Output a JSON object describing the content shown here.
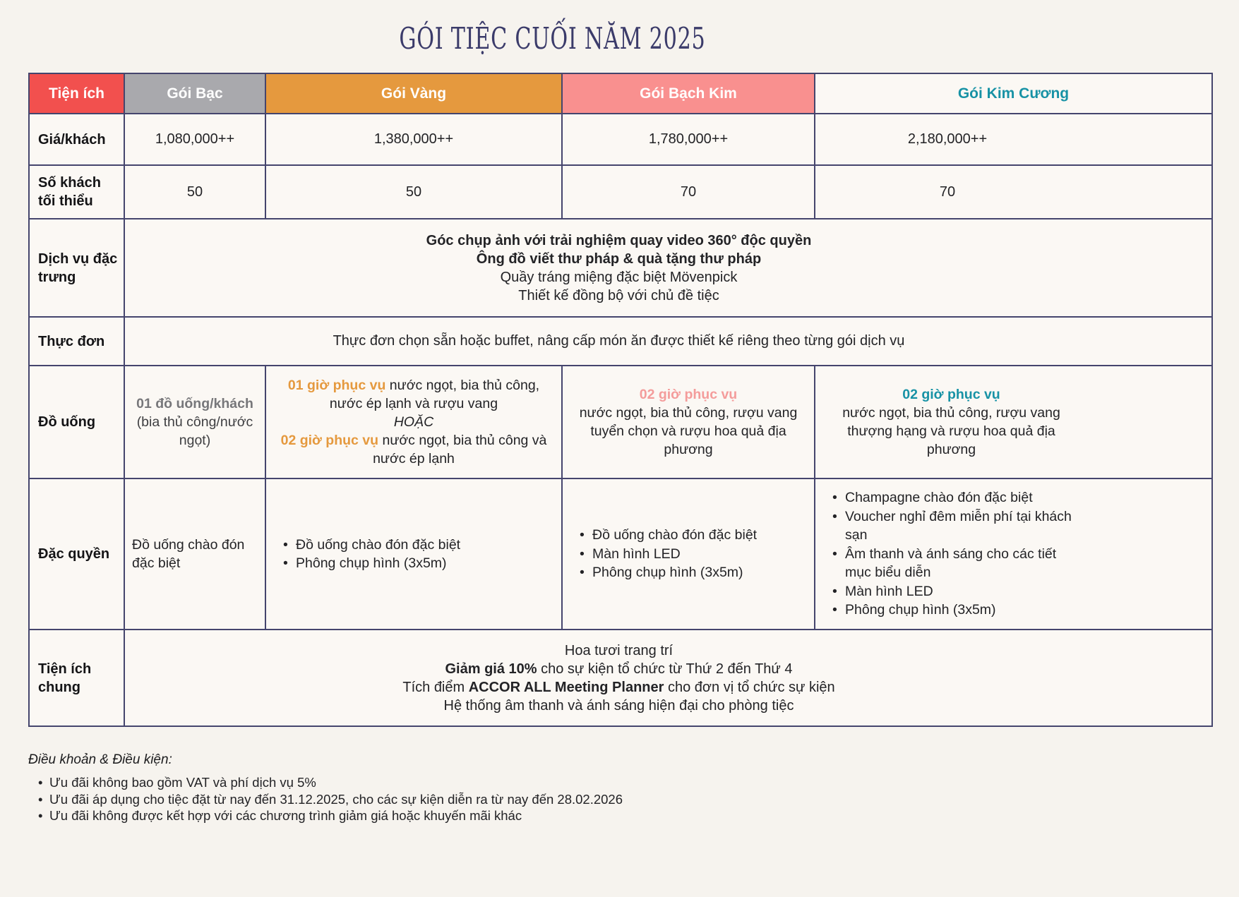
{
  "title": "GÓI TIỆC CUỐI NĂM 2025",
  "colors": {
    "page_bg": "#f6f3ee",
    "border": "#45456d",
    "title": "#3b3b6a",
    "accent_red": "#f2504e",
    "silver": "#a9a9ad",
    "gold": "#e5993e",
    "platinum": "#f9908f",
    "teal": "#1792a5"
  },
  "table": {
    "header": {
      "feature_col": "Tiện ích",
      "feature_bg": "#f2504e",
      "feature_fg": "#ffffff",
      "packages": [
        {
          "label": "Gói Bạc",
          "bg": "#a9a9ad",
          "fg": "#ffffff"
        },
        {
          "label": "Gói Vàng",
          "bg": "#e5993e",
          "fg": "#ffffff"
        },
        {
          "label": "Gói Bạch Kim",
          "bg": "#f9908f",
          "fg": "#ffffff"
        },
        {
          "label": "Gói Kim Cương",
          "bg": "#fbf8f4",
          "fg": "#1792a5"
        }
      ]
    },
    "rows": {
      "price": {
        "label": "Giá/khách",
        "values": [
          "1,080,000++",
          "1,380,000++",
          "1,780,000++",
          "2,180,000++"
        ]
      },
      "min_guests": {
        "label": "Số khách tối thiểu",
        "values": [
          "50",
          "50",
          "70",
          "70"
        ]
      },
      "signature": {
        "label": "Dịch vụ đặc trưng",
        "lines": [
          [
            {
              "t": "Góc chụp ảnh với trải nghiệm quay video 360° độc quyền",
              "b": true
            }
          ],
          [
            {
              "t": "Ông đồ viết thư pháp & quà tặng thư pháp",
              "b": true
            }
          ],
          [
            {
              "t": "Quầy tráng miệng đặc biệt Mövenpick"
            }
          ],
          [
            {
              "t": "Thiết kế đồng bộ với chủ đề tiệc"
            }
          ]
        ]
      },
      "menu": {
        "label": "Thực đơn",
        "text": "Thực đơn chọn sẵn hoặc buffet, nâng cấp món ăn được thiết kế riêng theo từng gói dịch vụ"
      },
      "drinks": {
        "label": "Đồ uống",
        "silver": {
          "line1": [
            {
              "t": "01 đồ uống/khách",
              "b": true,
              "c": "#77777a"
            }
          ],
          "line2": [
            {
              "t": "(bia thủ công/nước ngọt)",
              "c": "#3e3e41"
            }
          ]
        },
        "gold": {
          "line1": [
            {
              "t": "01 giờ phục vụ",
              "b": true,
              "c": "#e5993e"
            },
            {
              "t": " nước ngọt, bia thủ công, nước ép lạnh và rượu vang"
            }
          ],
          "line2": [
            {
              "t": "HOẶC",
              "i": true
            }
          ],
          "line3": [
            {
              "t": "02 giờ phục vụ",
              "b": true,
              "c": "#e5993e"
            },
            {
              "t": " nước ngọt, bia thủ công và nước ép lạnh"
            }
          ]
        },
        "platinum": {
          "line1": [
            {
              "t": "02 giờ phục vụ",
              "b": true,
              "c": "#f49c9b"
            }
          ],
          "line2": [
            {
              "t": "nước ngọt, bia thủ công, rượu vang tuyển chọn và rượu hoa quả địa phương"
            }
          ]
        },
        "diamond": {
          "line1": [
            {
              "t": "02 giờ phục vụ",
              "b": true,
              "c": "#1792a5"
            }
          ],
          "line2": [
            {
              "t": "nước ngọt, bia thủ công, rượu vang thượng hạng và rượu hoa quả địa phương"
            }
          ]
        }
      },
      "perks": {
        "label": "Đặc quyền",
        "silver_text": "Đồ uống chào đón đặc biệt",
        "gold_items": [
          "Đồ uống chào đón đặc biệt",
          "Phông chụp hình (3x5m)"
        ],
        "platinum_items": [
          "Đồ uống chào đón đặc biệt",
          "Màn hình LED",
          "Phông chụp hình (3x5m)"
        ],
        "diamond_items": [
          "Champagne chào đón đặc biệt",
          "Voucher nghỉ đêm miễn phí tại khách sạn",
          "Âm thanh và ánh sáng cho các tiết mục biểu diễn",
          "Màn hình LED",
          "Phông chụp hình (3x5m)"
        ]
      },
      "common": {
        "label": "Tiện ích chung",
        "lines": [
          [
            {
              "t": "Hoa tươi trang trí"
            }
          ],
          [
            {
              "t": "Giảm giá 10%",
              "b": true
            },
            {
              "t": " cho sự kiện tổ chức từ Thứ 2 đến Thứ 4"
            }
          ],
          [
            {
              "t": "Tích điểm "
            },
            {
              "t": "ACCOR ALL Meeting Planner",
              "b": true
            },
            {
              "t": " cho đơn vị tổ chức sự kiện"
            }
          ],
          [
            {
              "t": "Hệ thống âm thanh và ánh sáng hiện đại cho phòng tiệc"
            }
          ]
        ]
      }
    }
  },
  "terms": {
    "heading": "Điều khoản & Điều kiện:",
    "items": [
      "Ưu đãi không bao gồm VAT và phí dịch vụ 5%",
      "Ưu đãi áp dụng cho tiệc đặt từ nay đến 31.12.2025, cho các sự kiện diễn ra từ nay đến 28.02.2026",
      "Ưu đãi không được kết hợp với các chương trình giảm giá hoặc khuyến mãi khác"
    ]
  }
}
